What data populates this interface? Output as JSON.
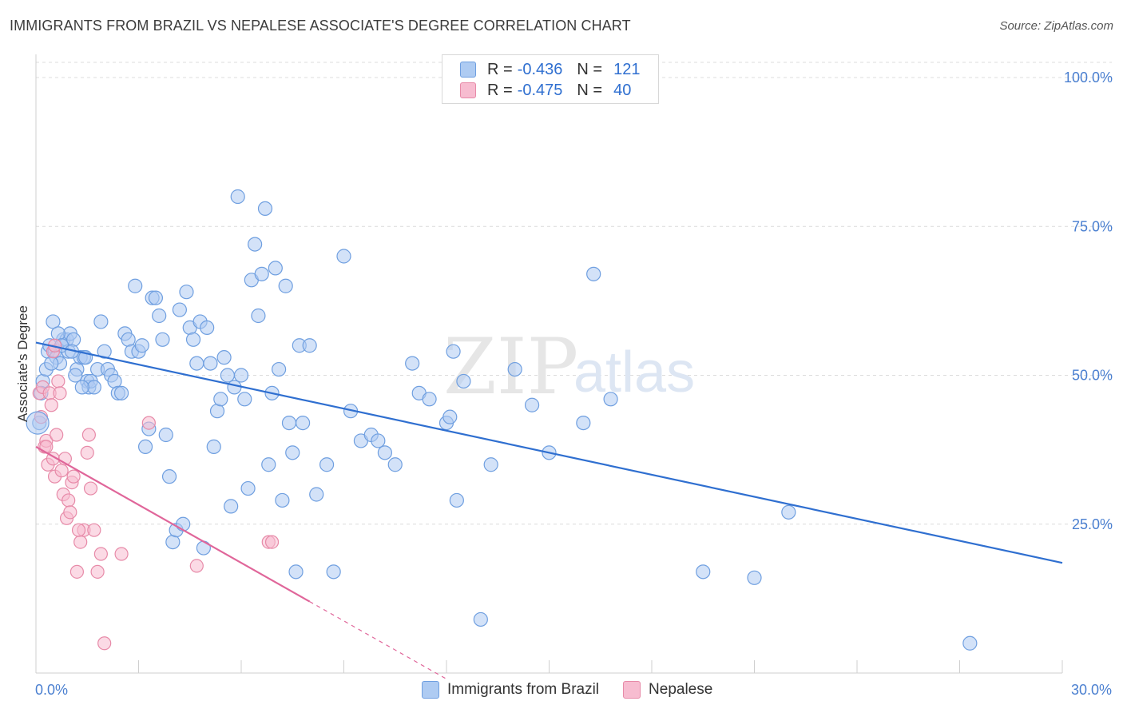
{
  "title": "IMMIGRANTS FROM BRAZIL VS NEPALESE ASSOCIATE'S DEGREE CORRELATION CHART",
  "source": "Source: ZipAtlas.com",
  "watermark": {
    "zip": "ZIP",
    "atlas": "atlas"
  },
  "legend": {
    "r_label": "R =",
    "n_label": "N =",
    "rows": [
      {
        "r": "-0.436",
        "n": "121",
        "color": "#aecbf2",
        "border": "#6f9fe0"
      },
      {
        "r": "-0.475",
        "n": "40",
        "color": "#f7bcd0",
        "border": "#e78aa8"
      }
    ]
  },
  "chart_data": {
    "type": "scatter",
    "xlabel": "",
    "ylabel": "Associate's Degree",
    "xlim": [
      0,
      30
    ],
    "ylim": [
      0,
      100
    ],
    "x_tick_labels": [
      {
        "v": 0,
        "label": "0.0%"
      },
      {
        "v": 30,
        "label": "30.0%"
      }
    ],
    "y_tick_labels": [
      {
        "v": 25,
        "label": "25.0%"
      },
      {
        "v": 50,
        "label": "50.0%"
      },
      {
        "v": 75,
        "label": "75.0%"
      },
      {
        "v": 100,
        "label": "100.0%"
      }
    ],
    "grid": true,
    "series": [
      {
        "name": "Immigrants from Brazil",
        "color": "#aecbf2",
        "stroke": "#6f9fe0",
        "trend": {
          "x0": 0,
          "y0": 55.5,
          "x1": 30,
          "y1": 18.5,
          "color": "#2f6fd0"
        },
        "points": [
          [
            0.1,
            42
          ],
          [
            0.2,
            49
          ],
          [
            0.3,
            51
          ],
          [
            0.35,
            54
          ],
          [
            0.4,
            55
          ],
          [
            0.5,
            59
          ],
          [
            0.55,
            54
          ],
          [
            0.6,
            53
          ],
          [
            0.7,
            52
          ],
          [
            0.8,
            56
          ],
          [
            0.9,
            56
          ],
          [
            0.95,
            54
          ],
          [
            1.0,
            57
          ],
          [
            1.1,
            56
          ],
          [
            1.2,
            51
          ],
          [
            1.3,
            53
          ],
          [
            1.4,
            53
          ],
          [
            1.5,
            49
          ],
          [
            1.55,
            48
          ],
          [
            1.6,
            49
          ],
          [
            1.7,
            48
          ],
          [
            1.8,
            51
          ],
          [
            1.9,
            59
          ],
          [
            2.0,
            54
          ],
          [
            2.1,
            51
          ],
          [
            2.2,
            50
          ],
          [
            2.3,
            49
          ],
          [
            2.4,
            47
          ],
          [
            2.5,
            47
          ],
          [
            2.6,
            57
          ],
          [
            2.7,
            56
          ],
          [
            2.8,
            54
          ],
          [
            2.9,
            65
          ],
          [
            3.0,
            54
          ],
          [
            3.1,
            55
          ],
          [
            3.2,
            38
          ],
          [
            3.3,
            41
          ],
          [
            3.4,
            63
          ],
          [
            3.5,
            63
          ],
          [
            3.6,
            60
          ],
          [
            3.7,
            56
          ],
          [
            3.8,
            40
          ],
          [
            3.9,
            33
          ],
          [
            4.0,
            22
          ],
          [
            4.1,
            24
          ],
          [
            4.2,
            61
          ],
          [
            4.3,
            25
          ],
          [
            4.4,
            64
          ],
          [
            4.5,
            58
          ],
          [
            4.6,
            56
          ],
          [
            4.7,
            52
          ],
          [
            4.8,
            59
          ],
          [
            4.9,
            21
          ],
          [
            5.0,
            58
          ],
          [
            5.1,
            52
          ],
          [
            5.2,
            38
          ],
          [
            5.3,
            44
          ],
          [
            5.4,
            46
          ],
          [
            5.5,
            53
          ],
          [
            5.6,
            50
          ],
          [
            5.7,
            28
          ],
          [
            5.8,
            48
          ],
          [
            5.9,
            80
          ],
          [
            6.0,
            50
          ],
          [
            6.1,
            46
          ],
          [
            6.2,
            31
          ],
          [
            6.3,
            66
          ],
          [
            6.4,
            72
          ],
          [
            6.5,
            60
          ],
          [
            6.6,
            67
          ],
          [
            6.7,
            78
          ],
          [
            6.8,
            35
          ],
          [
            6.9,
            47
          ],
          [
            7.0,
            68
          ],
          [
            7.1,
            51
          ],
          [
            7.2,
            29
          ],
          [
            7.3,
            65
          ],
          [
            7.4,
            42
          ],
          [
            7.5,
            37
          ],
          [
            7.6,
            17
          ],
          [
            7.7,
            55
          ],
          [
            7.8,
            42
          ],
          [
            8.0,
            55
          ],
          [
            8.2,
            30
          ],
          [
            8.5,
            35
          ],
          [
            8.7,
            17
          ],
          [
            9.0,
            70
          ],
          [
            9.2,
            44
          ],
          [
            9.5,
            39
          ],
          [
            9.8,
            40
          ],
          [
            10.0,
            39
          ],
          [
            10.2,
            37
          ],
          [
            10.5,
            35
          ],
          [
            11.0,
            52
          ],
          [
            11.2,
            47
          ],
          [
            11.5,
            46
          ],
          [
            12.0,
            42
          ],
          [
            12.1,
            43
          ],
          [
            12.2,
            54
          ],
          [
            12.3,
            29
          ],
          [
            12.5,
            49
          ],
          [
            13.0,
            9
          ],
          [
            13.3,
            35
          ],
          [
            14.0,
            51
          ],
          [
            14.5,
            45
          ],
          [
            15.0,
            37
          ],
          [
            16.0,
            42
          ],
          [
            16.3,
            67
          ],
          [
            16.8,
            46
          ],
          [
            19.5,
            17
          ],
          [
            21.0,
            16
          ],
          [
            22.0,
            27
          ],
          [
            27.3,
            5
          ],
          [
            0.15,
            47
          ],
          [
            0.45,
            52
          ],
          [
            0.65,
            57
          ],
          [
            0.75,
            55
          ],
          [
            1.05,
            54
          ],
          [
            1.15,
            50
          ],
          [
            1.35,
            48
          ],
          [
            1.45,
            53
          ]
        ]
      },
      {
        "name": "Nepalese",
        "color": "#f7bcd0",
        "stroke": "#e78aa8",
        "trend": {
          "x0": 0,
          "y0": 38,
          "x1": 8,
          "y1": 12,
          "dash_x1": 12,
          "dash_y1": -1,
          "color": "#e0669a"
        },
        "points": [
          [
            0.1,
            47
          ],
          [
            0.15,
            43
          ],
          [
            0.2,
            48
          ],
          [
            0.25,
            38
          ],
          [
            0.3,
            39
          ],
          [
            0.35,
            35
          ],
          [
            0.4,
            47
          ],
          [
            0.45,
            45
          ],
          [
            0.5,
            36
          ],
          [
            0.55,
            33
          ],
          [
            0.6,
            40
          ],
          [
            0.65,
            49
          ],
          [
            0.7,
            47
          ],
          [
            0.75,
            34
          ],
          [
            0.8,
            30
          ],
          [
            0.85,
            36
          ],
          [
            0.9,
            26
          ],
          [
            0.95,
            29
          ],
          [
            1.0,
            27
          ],
          [
            1.05,
            32
          ],
          [
            1.1,
            33
          ],
          [
            1.2,
            17
          ],
          [
            1.3,
            22
          ],
          [
            1.4,
            24
          ],
          [
            1.5,
            37
          ],
          [
            1.6,
            31
          ],
          [
            1.7,
            24
          ],
          [
            1.8,
            17
          ],
          [
            1.9,
            20
          ],
          [
            2.0,
            5
          ],
          [
            2.5,
            20
          ],
          [
            3.3,
            42
          ],
          [
            4.7,
            18
          ],
          [
            6.8,
            22
          ],
          [
            0.5,
            54
          ],
          [
            0.55,
            55
          ],
          [
            0.3,
            38
          ],
          [
            1.25,
            24
          ],
          [
            1.55,
            40
          ],
          [
            6.9,
            22
          ]
        ]
      }
    ]
  }
}
